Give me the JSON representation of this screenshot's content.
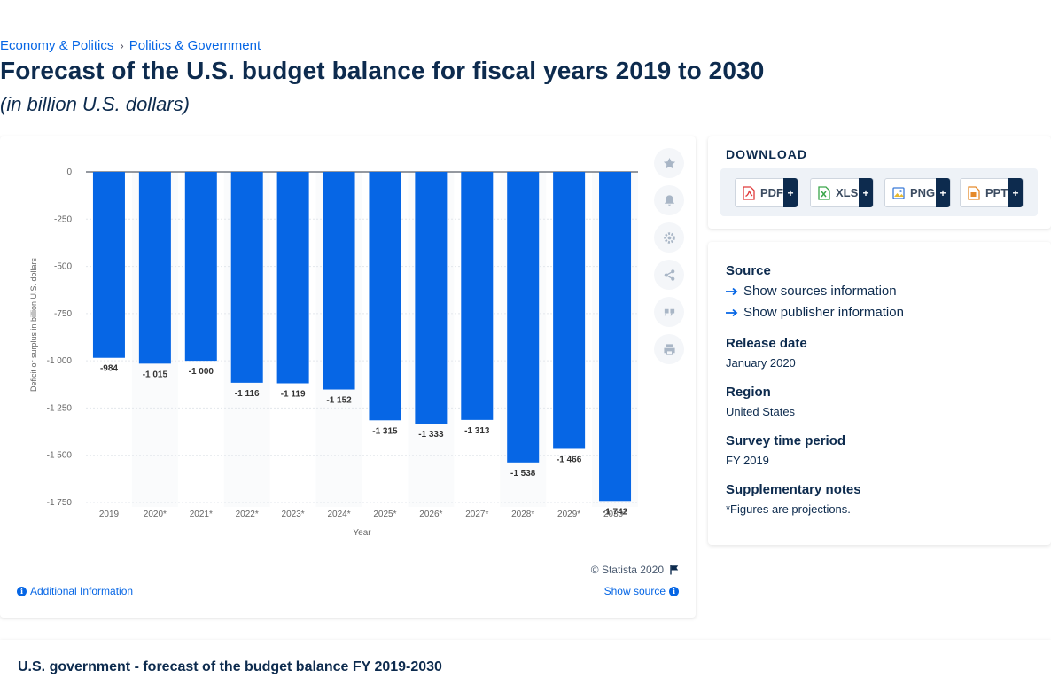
{
  "breadcrumb": {
    "items": [
      "Economy & Politics",
      "Politics & Government"
    ],
    "separator": "›"
  },
  "title": "Forecast of the U.S. budget balance for fiscal years 2019 to 2030",
  "subtitle": "(in billion U.S. dollars)",
  "colors": {
    "bar": "#0666e5",
    "accent": "#0666e5",
    "navy": "#0d2b4e"
  },
  "chart_data": {
    "type": "bar",
    "categories": [
      "2019",
      "2020*",
      "2021*",
      "2022*",
      "2023*",
      "2024*",
      "2025*",
      "2026*",
      "2027*",
      "2028*",
      "2029*",
      "2030*"
    ],
    "values": [
      -984,
      -1015,
      -1000,
      -1116,
      -1119,
      -1152,
      -1315,
      -1333,
      -1313,
      -1538,
      -1466,
      -1742
    ],
    "data_labels": [
      "-984",
      "-1 015",
      "-1 000",
      "-1 116",
      "-1 119",
      "-1 152",
      "-1 315",
      "-1 333",
      "-1 313",
      "-1 538",
      "-1 466",
      "-1 742"
    ],
    "ylim": [
      -1750,
      0
    ],
    "yticks": [
      0,
      -250,
      -500,
      -750,
      -1000,
      -1250,
      -1500,
      -1750
    ],
    "ytick_labels": [
      "0",
      "-250",
      "-500",
      "-750",
      "-1 000",
      "-1 250",
      "-1 500",
      "-1 750"
    ],
    "xlabel": "Year",
    "ylabel": "Deficit or surplus in billion U.S. dollars",
    "grid": true,
    "legend": "none"
  },
  "chart_footer": {
    "copyright": "© Statista 2020",
    "additional_info": "Additional Information",
    "show_source": "Show source"
  },
  "tools": [
    "star-icon",
    "bell-icon",
    "gear-icon",
    "share-icon",
    "quote-icon",
    "print-icon"
  ],
  "download": {
    "title": "DOWNLOAD",
    "buttons": [
      {
        "label": "PDF",
        "icon": "pdf-file-icon",
        "color": "#e03a3a"
      },
      {
        "label": "XLS",
        "icon": "xls-file-icon",
        "color": "#3aa64a"
      },
      {
        "label": "PNG",
        "icon": "png-file-icon",
        "color": "#3b7bd8"
      },
      {
        "label": "PPT",
        "icon": "ppt-file-icon",
        "color": "#e58a2a"
      }
    ],
    "plus": "+"
  },
  "meta": {
    "source_heading": "Source",
    "show_sources": "Show sources information",
    "show_publisher": "Show publisher information",
    "release_heading": "Release date",
    "release_value": "January 2020",
    "region_heading": "Region",
    "region_value": "United States",
    "survey_heading": "Survey time period",
    "survey_value": "FY 2019",
    "notes_heading": "Supplementary notes",
    "notes_value": "*Figures are projections."
  },
  "bottom": {
    "title": "U.S. government - forecast of the budget balance FY 2019-2030"
  }
}
